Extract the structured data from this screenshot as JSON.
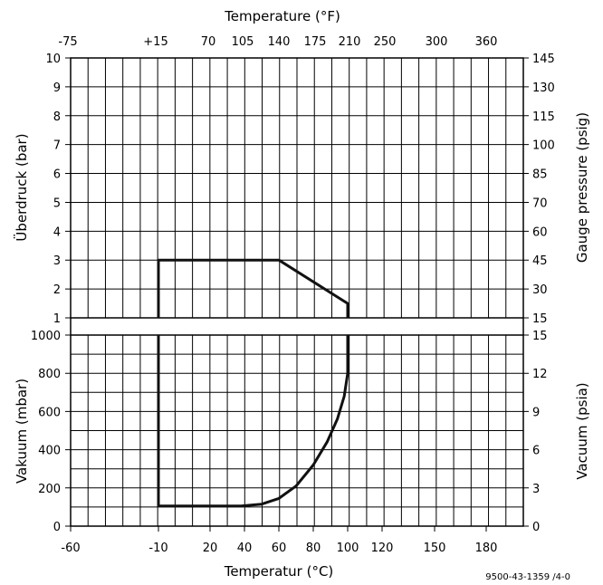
{
  "chart_data": {
    "type": "line",
    "top_axis_title": "Temperature (°F)",
    "bottom_axis_title": "Temperatur (°C)",
    "top_ticks": [
      "-75",
      "+15",
      "70",
      "105",
      "140",
      "175",
      "210",
      "250",
      "300",
      "360"
    ],
    "bottom_ticks": [
      "-60",
      "-10",
      "20",
      "40",
      "60",
      "80",
      "100",
      "120",
      "150",
      "180"
    ],
    "upper_panel": {
      "left_axis_title": "Überdruck (bar)",
      "right_axis_title": "Gauge pressure (psig)",
      "left_ticks": [
        "1",
        "2",
        "3",
        "4",
        "5",
        "6",
        "7",
        "8",
        "9",
        "10"
      ],
      "right_ticks": [
        "15",
        "30",
        "45",
        "60",
        "70",
        "85",
        "100",
        "115",
        "130",
        "145"
      ],
      "ylim": [
        1,
        10
      ],
      "series": [
        {
          "x": [
            -10,
            -10,
            60,
            100,
            100
          ],
          "y": [
            1,
            3,
            3,
            1.5,
            1
          ]
        }
      ]
    },
    "lower_panel": {
      "left_axis_title": "Vakuum (mbar)",
      "right_axis_title": "Vacuum (psia)",
      "left_ticks": [
        "0",
        "200",
        "400",
        "600",
        "800",
        "1000"
      ],
      "right_ticks": [
        "0",
        "3",
        "6",
        "9",
        "12",
        "15"
      ],
      "ylim": [
        0,
        1000
      ],
      "series": [
        {
          "x": [
            -10,
            -10,
            38,
            50,
            60,
            70,
            80,
            88,
            94,
            98,
            100,
            100
          ],
          "y": [
            1000,
            105,
            105,
            115,
            145,
            210,
            320,
            440,
            560,
            680,
            800,
            1000
          ]
        }
      ]
    }
  },
  "footer": {
    "code": "9500-43-1359 /4-0"
  }
}
